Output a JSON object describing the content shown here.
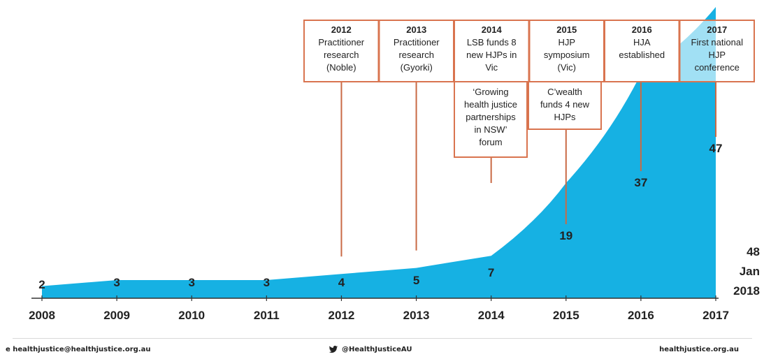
{
  "colors": {
    "area": "#16b1e3",
    "box_border": "#d9744f",
    "connector": "#c96a45",
    "text": "#222222"
  },
  "chart_data": {
    "type": "area",
    "x": [
      2008,
      2009,
      2010,
      2011,
      2012,
      2013,
      2014,
      2015,
      2016,
      2017
    ],
    "x_tick_labels": [
      "2008",
      "2009",
      "2010",
      "2011",
      "2012",
      "2013",
      "2014",
      "2015",
      "2016",
      "2017"
    ],
    "series": [
      {
        "values": [
          2,
          3,
          3,
          3,
          4,
          5,
          7,
          19,
          37,
          47
        ],
        "value_labels": [
          "2",
          "3",
          "3",
          "3",
          "4",
          "5",
          "7",
          "19",
          "37",
          "47"
        ],
        "end_value": 48,
        "end_label": [
          "48",
          "Jan",
          "2018"
        ]
      }
    ],
    "annotations": [
      {
        "year": 2012,
        "label": "2012",
        "lines": [
          "Practitioner",
          "research",
          "(Noble)"
        ]
      },
      {
        "year": 2013,
        "label": "2013",
        "lines": [
          "Practitioner",
          "research",
          "(Gyorki)"
        ]
      },
      {
        "year": 2014,
        "label": "2014",
        "lines": [
          "LSB funds 8",
          "new HJPs in",
          "Vic"
        ]
      },
      {
        "year": 2015,
        "label": "2015",
        "lines": [
          "HJP",
          "symposium",
          "(Vic)"
        ]
      },
      {
        "year": 2016,
        "label": "2016",
        "lines": [
          "HJA",
          "established"
        ]
      },
      {
        "year": 2017,
        "label": "2017",
        "lines": [
          "First national",
          "HJP",
          "conference"
        ]
      }
    ],
    "sub_annotations": [
      {
        "year": 2014,
        "lines": [
          "‘Growing",
          "health justice",
          "partnerships",
          "in NSW’",
          "forum"
        ]
      },
      {
        "year": 2015,
        "lines": [
          "C’wealth",
          "funds 4 new",
          "HJPs"
        ]
      }
    ]
  },
  "footer": {
    "email": "e  healthjustice@healthjustice.org.au",
    "twitter_icon": "twitter-bird-icon",
    "twitter": "@HealthJusticeAU",
    "site": "healthjustice.org.au"
  }
}
